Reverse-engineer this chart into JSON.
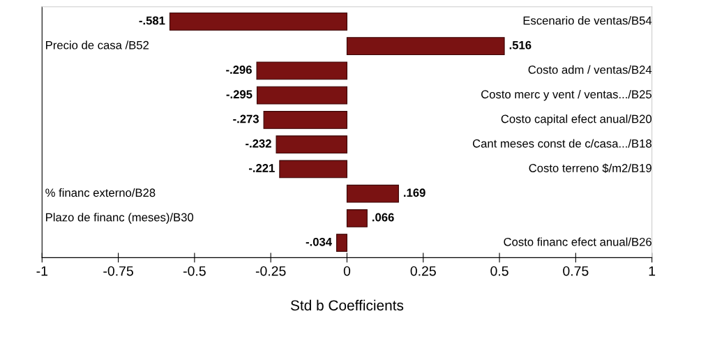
{
  "chart_data": {
    "type": "bar",
    "orientation": "horizontal",
    "xlabel": "Std b Coefficients",
    "categories": [
      "Escenario de ventas/B54",
      "Precio de casa /B52",
      "Costo adm / ventas/B24",
      "Costo merc y vent / ventas.../B25",
      "Costo capital efect anual/B20",
      "Cant meses const de c/casa.../B18",
      "Costo terreno $/m2/B19",
      "% financ externo/B28",
      "Plazo de financ (meses)/B30",
      "Costo financ efect anual/B26"
    ],
    "values": [
      -0.581,
      0.516,
      -0.296,
      -0.295,
      -0.273,
      -0.232,
      -0.221,
      0.169,
      0.066,
      -0.034
    ],
    "value_labels": [
      "-.581",
      ".516",
      "-.296",
      "-.295",
      "-.273",
      "-.232",
      "-.221",
      ".169",
      ".066",
      "-.034"
    ],
    "color": "#7a1212",
    "xlim": [
      -1,
      1
    ],
    "xticks": [
      -1,
      -0.75,
      -0.5,
      -0.25,
      0,
      0.25,
      0.5,
      0.75,
      1
    ],
    "grid": false,
    "legend": false
  }
}
